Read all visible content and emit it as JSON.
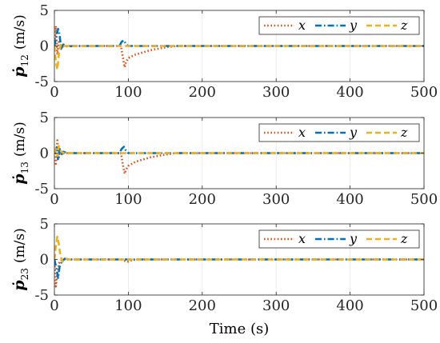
{
  "chart_data": [
    {
      "type": "line",
      "ylabel_var": "ṗ",
      "ylabel_sub": "12",
      "ylabel_unit": "(m/s)",
      "xlim": [
        0,
        500
      ],
      "ylim": [
        -5,
        5
      ],
      "xticks": [
        "0",
        "100",
        "200",
        "300",
        "400",
        "500"
      ],
      "yticks": [
        "5",
        "0",
        "-5"
      ],
      "grid": true,
      "legend": "top-right",
      "series": [
        {
          "name": "x",
          "color": "#D95319",
          "style": "dotted",
          "x": [
            0,
            2,
            4,
            6,
            8,
            10,
            15,
            20,
            90,
            93,
            95,
            97,
            100,
            110,
            130,
            150,
            165,
            200,
            500
          ],
          "y": [
            0,
            2.8,
            -1.2,
            0.8,
            0.2,
            -0.1,
            0,
            0,
            0,
            -1.8,
            -3.0,
            -2.2,
            -1.7,
            -1.2,
            -0.6,
            -0.2,
            0,
            0,
            0
          ]
        },
        {
          "name": "y",
          "color": "#0072BD",
          "style": "dashdot",
          "x": [
            0,
            3,
            5,
            7,
            9,
            12,
            18,
            25,
            88,
            91,
            94,
            97,
            100,
            110,
            500
          ],
          "y": [
            0,
            1.5,
            2.4,
            1.6,
            -0.4,
            0.2,
            -0.1,
            0,
            0,
            0.6,
            0.8,
            0.2,
            0,
            0,
            0
          ]
        },
        {
          "name": "z",
          "color": "#EDB120",
          "style": "dashed",
          "x": [
            0,
            2,
            4,
            6,
            9,
            13,
            20,
            500
          ],
          "y": [
            0,
            -2.2,
            -3.3,
            -1.2,
            0.3,
            0,
            0,
            0
          ]
        }
      ]
    },
    {
      "type": "line",
      "ylabel_var": "ṗ",
      "ylabel_sub": "13",
      "ylabel_unit": "(m/s)",
      "xlim": [
        0,
        500
      ],
      "ylim": [
        -5,
        5
      ],
      "xticks": [
        "0",
        "100",
        "200",
        "300",
        "400",
        "500"
      ],
      "yticks": [
        "5",
        "0",
        "-5"
      ],
      "grid": true,
      "legend": "top-right",
      "series": [
        {
          "name": "x",
          "color": "#D95319",
          "style": "dotted",
          "x": [
            0,
            2,
            4,
            6,
            8,
            10,
            15,
            20,
            90,
            93,
            95,
            97,
            100,
            110,
            130,
            150,
            165,
            200,
            500
          ],
          "y": [
            0,
            -1.5,
            1.8,
            -0.6,
            0.4,
            -0.1,
            0,
            0,
            0,
            -1.8,
            -2.9,
            -2.3,
            -1.8,
            -1.2,
            -0.6,
            -0.2,
            0,
            0,
            0
          ]
        },
        {
          "name": "y",
          "color": "#0072BD",
          "style": "dashdot",
          "x": [
            0,
            3,
            5,
            7,
            9,
            12,
            18,
            25,
            88,
            91,
            94,
            97,
            100,
            110,
            500
          ],
          "y": [
            0,
            0.8,
            -1.0,
            0.6,
            -0.3,
            0.2,
            0,
            0,
            0,
            0.6,
            0.9,
            0.3,
            0,
            0,
            0
          ]
        },
        {
          "name": "z",
          "color": "#EDB120",
          "style": "dashed",
          "x": [
            0,
            2,
            4,
            6,
            9,
            13,
            20,
            500
          ],
          "y": [
            0,
            0.6,
            -0.4,
            1.0,
            0.2,
            0,
            0,
            0
          ]
        }
      ]
    },
    {
      "type": "line",
      "ylabel_var": "ṗ",
      "ylabel_sub": "23",
      "ylabel_unit": "(m/s)",
      "xlim": [
        0,
        500
      ],
      "ylim": [
        -5,
        5
      ],
      "xticks": [
        "0",
        "100",
        "200",
        "300",
        "400",
        "500"
      ],
      "yticks": [
        "5",
        "0",
        "-5"
      ],
      "grid": true,
      "legend": "top-right",
      "xlabel": "Time (s)",
      "series": [
        {
          "name": "x",
          "color": "#D95319",
          "style": "dotted",
          "x": [
            0,
            2,
            4,
            6,
            8,
            12,
            18,
            90,
            95,
            100,
            105,
            110,
            500
          ],
          "y": [
            0,
            -3.8,
            -2.0,
            -0.6,
            -0.2,
            0,
            0,
            0,
            -0.2,
            -0.3,
            -0.1,
            0,
            0
          ]
        },
        {
          "name": "y",
          "color": "#0072BD",
          "style": "dashdot",
          "x": [
            0,
            3,
            5,
            7,
            10,
            14,
            20,
            500
          ],
          "y": [
            0,
            -1.4,
            -2.6,
            -1.0,
            -0.3,
            0.1,
            0,
            0
          ]
        },
        {
          "name": "z",
          "color": "#EDB120",
          "style": "dashed",
          "x": [
            0,
            2,
            4,
            6,
            8,
            11,
            15,
            20,
            500
          ],
          "y": [
            0,
            1.8,
            3.2,
            2.2,
            0.6,
            -0.3,
            0.1,
            0,
            0
          ]
        }
      ]
    }
  ]
}
